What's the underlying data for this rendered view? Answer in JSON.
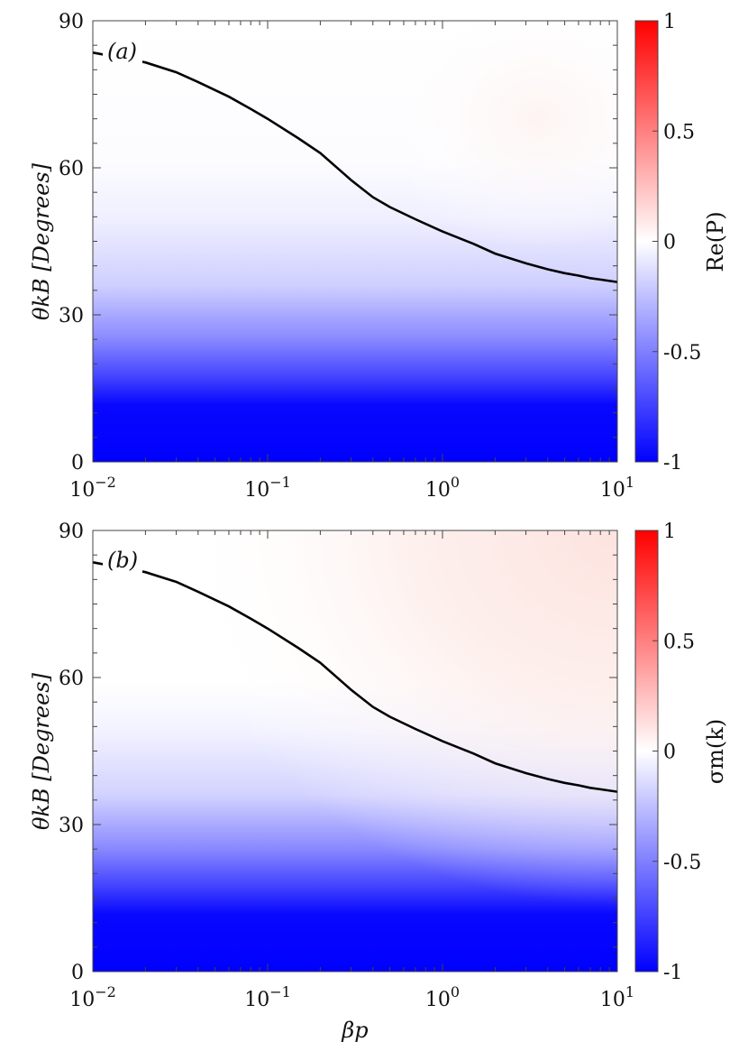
{
  "chart_data": [
    {
      "type": "heatmap",
      "panel_label": "(a)",
      "xlabel": "",
      "ylabel": "θkB [Degrees]",
      "x_scale": "log",
      "xlim": [
        0.01,
        10
      ],
      "ylim": [
        0,
        90
      ],
      "x_ticks": [
        {
          "value": 0.01,
          "label": "10−2"
        },
        {
          "value": 0.1,
          "label": "10−1"
        },
        {
          "value": 1,
          "label": "100"
        },
        {
          "value": 10,
          "label": "101"
        }
      ],
      "y_ticks": [
        0,
        30,
        60,
        90
      ],
      "colorbar": {
        "label": "Re(P)",
        "range": [
          -1,
          1
        ],
        "ticks": [
          -1,
          -0.5,
          0,
          0.5,
          1
        ],
        "tick_labels": [
          "-1",
          "-0.5",
          "0",
          "0.5",
          "1"
        ],
        "colormap": [
          "#0000ff",
          "#ffffff",
          "#ff0000"
        ]
      },
      "field_samples": [
        {
          "theta": 0,
          "value": -1.0
        },
        {
          "theta": 10,
          "value": -0.95
        },
        {
          "theta": 18,
          "value": -0.7
        },
        {
          "theta": 25,
          "value": -0.45
        },
        {
          "theta": 35,
          "value": -0.2
        },
        {
          "theta": 50,
          "value": -0.07
        },
        {
          "theta": 60,
          "value": -0.01
        },
        {
          "theta": 75,
          "value": 0.0
        },
        {
          "theta": 90,
          "value": 0.01
        }
      ],
      "series": [
        {
          "type": "line",
          "x": [
            0.01,
            0.02,
            0.03,
            0.04,
            0.06,
            0.08,
            0.1,
            0.15,
            0.2,
            0.3,
            0.4,
            0.5,
            0.7,
            1,
            1.5,
            2,
            3,
            4,
            5,
            6,
            7,
            8,
            10
          ],
          "y": [
            83.5,
            81.5,
            79.5,
            77.5,
            74.5,
            72.0,
            70.0,
            66.0,
            63.0,
            57.5,
            54.0,
            52.0,
            49.5,
            47.0,
            44.5,
            42.5,
            40.5,
            39.3,
            38.5,
            38.0,
            37.5,
            37.2,
            36.7
          ]
        }
      ]
    },
    {
      "type": "heatmap",
      "panel_label": "(b)",
      "xlabel": "βp",
      "ylabel": "θkB [Degrees]",
      "x_scale": "log",
      "xlim": [
        0.01,
        10
      ],
      "ylim": [
        0,
        90
      ],
      "x_ticks": [
        {
          "value": 0.01,
          "label": "10−2"
        },
        {
          "value": 0.1,
          "label": "10−1"
        },
        {
          "value": 1,
          "label": "100"
        },
        {
          "value": 10,
          "label": "101"
        }
      ],
      "y_ticks": [
        0,
        30,
        60,
        90
      ],
      "colorbar": {
        "label": "σm(k)",
        "range": [
          -1,
          1
        ],
        "ticks": [
          -1,
          -0.5,
          0,
          0.5,
          1
        ],
        "tick_labels": [
          "-1",
          "-0.5",
          "0",
          "0.5",
          "1"
        ],
        "colormap": [
          "#0000ff",
          "#ffffff",
          "#ff0000"
        ]
      },
      "field_samples": [
        {
          "theta": 0,
          "value": -1.0
        },
        {
          "theta": 10,
          "value": -0.95
        },
        {
          "theta": 18,
          "value": -0.72
        },
        {
          "theta": 25,
          "value": -0.45
        },
        {
          "theta": 35,
          "value": -0.18
        },
        {
          "theta": 50,
          "value": -0.05
        },
        {
          "theta": 60,
          "value": 0.0
        },
        {
          "theta": 75,
          "value": 0.03
        },
        {
          "theta": 90,
          "value": 0.07
        }
      ],
      "series": [
        {
          "type": "line",
          "x": [
            0.01,
            0.02,
            0.03,
            0.04,
            0.06,
            0.08,
            0.1,
            0.15,
            0.2,
            0.3,
            0.4,
            0.5,
            0.7,
            1,
            1.5,
            2,
            3,
            4,
            5,
            6,
            7,
            8,
            10
          ],
          "y": [
            83.5,
            81.5,
            79.5,
            77.5,
            74.5,
            72.0,
            70.0,
            66.0,
            63.0,
            57.5,
            54.0,
            52.0,
            49.5,
            47.0,
            44.5,
            42.5,
            40.5,
            39.3,
            38.5,
            38.0,
            37.5,
            37.2,
            36.7
          ]
        }
      ]
    }
  ]
}
